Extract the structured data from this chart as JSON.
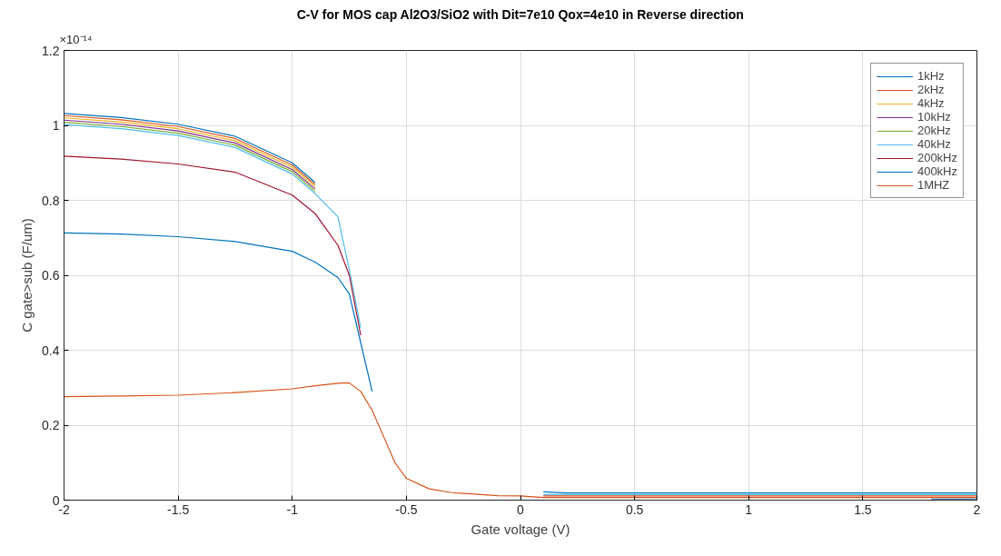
{
  "chart_data": {
    "type": "line",
    "title": "C-V for MOS cap Al2O3/SiO2 with Dit=7e10 Qox=4e10 in Reverse direction",
    "xlabel": "Gate voltage (V)",
    "ylabel": "C gate>sub (F/um)",
    "annotations": [
      "×10⁻¹⁴"
    ],
    "x": [
      -2,
      -1.75,
      -1.5,
      -1.25,
      -1,
      -0.9,
      -0.8,
      -0.75,
      -0.7,
      -0.65,
      -0.6,
      -0.55,
      -0.5,
      -0.4,
      -0.3,
      -0.2,
      -0.1,
      0,
      0.1,
      0.2,
      0.5,
      1,
      1.5,
      1.8,
      2
    ],
    "series": [
      {
        "name": "1kHz",
        "color": "#0072bd",
        "values": [
          1.032,
          1.021,
          1.003,
          0.971,
          0.9,
          0.848,
          null,
          null,
          null,
          null,
          null,
          null,
          null,
          null,
          null,
          null,
          null,
          null,
          0.022,
          0.019,
          0.019,
          0.019,
          0.019,
          0.019,
          0.019
        ]
      },
      {
        "name": "2kHz",
        "color": "#d95319",
        "values": [
          1.026,
          1.015,
          0.997,
          0.965,
          0.894,
          0.842,
          null,
          null,
          null,
          null,
          null,
          null,
          null,
          null,
          null,
          null,
          null,
          null,
          0.011,
          0.011,
          0.011,
          0.011,
          0.011,
          0.011,
          0.011
        ]
      },
      {
        "name": "4kHz",
        "color": "#edb120",
        "values": [
          1.02,
          1.009,
          0.991,
          0.959,
          0.888,
          0.836,
          null,
          null,
          null,
          null,
          null,
          null,
          null,
          null,
          null,
          null,
          null,
          null,
          null,
          null,
          null,
          null,
          null,
          null,
          null
        ]
      },
      {
        "name": "10kHz",
        "color": "#7e2f8e",
        "values": [
          1.014,
          1.003,
          0.985,
          0.953,
          0.882,
          0.83,
          null,
          null,
          null,
          null,
          null,
          null,
          null,
          null,
          null,
          null,
          null,
          null,
          null,
          null,
          null,
          null,
          null,
          null,
          null
        ]
      },
      {
        "name": "20kHz",
        "color": "#77ac30",
        "values": [
          1.008,
          0.997,
          0.979,
          0.947,
          0.876,
          0.824,
          null,
          null,
          null,
          null,
          null,
          null,
          null,
          null,
          null,
          null,
          null,
          null,
          null,
          null,
          null,
          null,
          null,
          null,
          null
        ]
      },
      {
        "name": "40kHz",
        "color": "#4dbeee",
        "values": [
          1.002,
          0.991,
          0.973,
          0.941,
          0.87,
          0.818,
          0.756,
          0.615,
          0.46,
          null,
          null,
          null,
          null,
          null,
          null,
          null,
          null,
          null,
          0.015,
          0.015,
          0.015,
          0.015,
          0.015,
          0.015,
          0.015
        ]
      },
      {
        "name": "200kHz",
        "color": "#a2142f",
        "values": [
          0.918,
          0.91,
          0.897,
          0.875,
          0.814,
          0.765,
          0.68,
          0.6,
          0.44,
          null,
          null,
          null,
          null,
          null,
          null,
          null,
          null,
          null,
          null,
          null,
          null,
          null,
          null,
          null,
          null
        ]
      },
      {
        "name": "400kHz",
        "color": "#0072bd",
        "values": [
          0.713,
          0.71,
          0.703,
          0.69,
          0.664,
          0.635,
          0.594,
          0.55,
          0.42,
          0.29,
          null,
          null,
          null,
          null,
          null,
          null,
          null,
          null,
          null,
          null,
          null,
          null,
          null,
          0.003,
          0.003
        ]
      },
      {
        "name": "1MHZ",
        "color": "#d95319",
        "values": [
          0.276,
          0.278,
          0.28,
          0.287,
          0.297,
          0.305,
          0.312,
          0.313,
          0.29,
          0.24,
          0.17,
          0.1,
          0.058,
          0.03,
          0.02,
          0.016,
          0.012,
          0.011,
          0.007,
          0.007,
          0.007,
          0.007,
          0.007,
          0.007,
          0.007
        ]
      }
    ],
    "xlim": [
      -2,
      2
    ],
    "xticks": [
      -2,
      -1.5,
      -1,
      -0.5,
      0,
      0.5,
      1,
      1.5,
      2
    ],
    "ylim": [
      0,
      1.2
    ],
    "yticks": [
      0,
      0.2,
      0.4,
      0.6,
      0.8,
      1,
      1.2
    ],
    "grid": true,
    "legend": "top right",
    "line_style": "solid",
    "marker": "none"
  }
}
